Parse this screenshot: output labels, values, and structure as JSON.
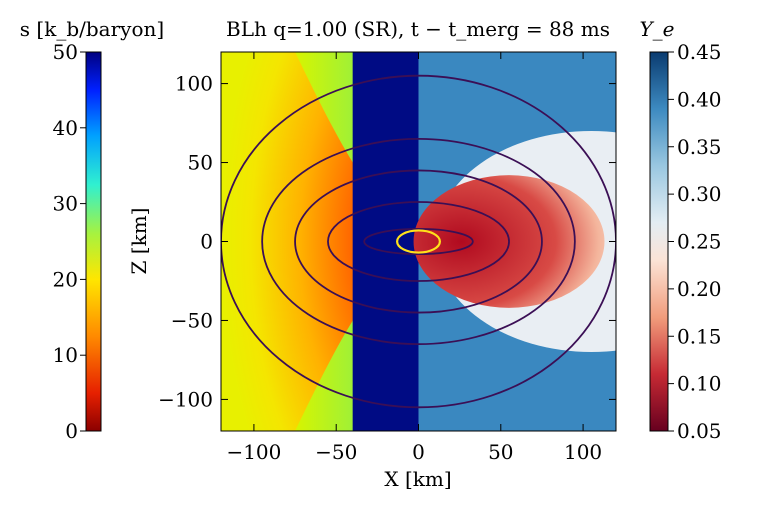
{
  "chart_data": {
    "type": "heatmap",
    "title": "BLh q=1.00 (SR), t − t_merg = 88 ms",
    "xlabel": "X [km]",
    "ylabel": "Z [km]",
    "xlim": [
      -120,
      120
    ],
    "ylim": [
      -120,
      120
    ],
    "x_ticks": [
      -100,
      -50,
      0,
      50,
      100
    ],
    "y_ticks": [
      -100,
      -50,
      0,
      50,
      100
    ],
    "x_tick_labels": [
      "−100",
      "−50",
      "0",
      "50",
      "100"
    ],
    "y_tick_labels": [
      "−100",
      "−50",
      "0",
      "50",
      "100"
    ],
    "left_half": {
      "quantity": "entropy",
      "colorbar_label": "s [k_b/baryon]",
      "colormap": "jet_r",
      "range": [
        0,
        50
      ],
      "ticks": [
        0,
        10,
        20,
        30,
        40,
        50
      ],
      "tick_labels": [
        "0",
        "10",
        "20",
        "30",
        "40",
        "50"
      ]
    },
    "right_half": {
      "quantity": "electron fraction",
      "colorbar_label": "Y_e",
      "colormap": "RdBu",
      "range": [
        0.05,
        0.45
      ],
      "ticks": [
        0.05,
        0.1,
        0.15,
        0.2,
        0.25,
        0.3,
        0.35,
        0.4,
        0.45
      ],
      "tick_labels": [
        "0.05",
        "0.10",
        "0.15",
        "0.20",
        "0.25",
        "0.30",
        "0.35",
        "0.40",
        "0.45"
      ]
    },
    "density_contours": {
      "color": "#3b0f55",
      "half_widths_km": [
        120,
        95,
        75,
        55,
        33
      ],
      "half_heights_km": [
        105,
        65,
        45,
        25,
        8
      ]
    },
    "core_contour": {
      "color": "#ffe11a",
      "half_width_km": 13,
      "half_height_km": 7
    }
  }
}
